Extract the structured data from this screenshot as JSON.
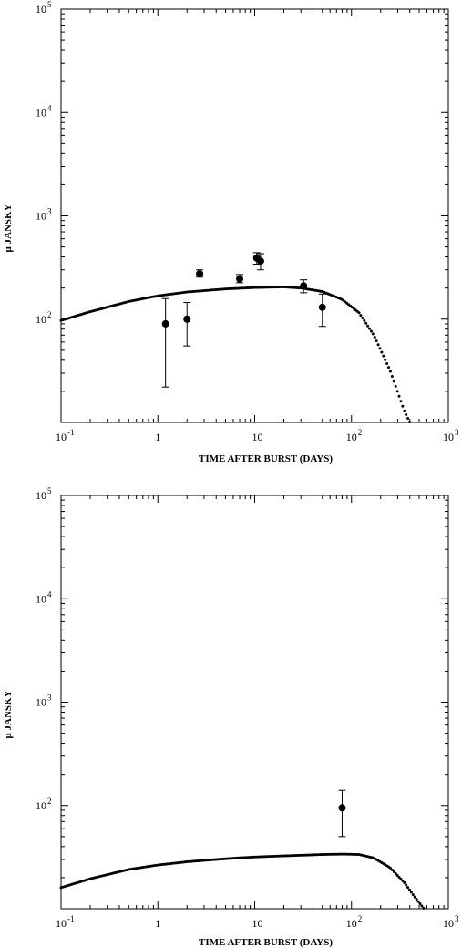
{
  "chart_data": [
    {
      "type": "scatter",
      "xlabel": "TIME AFTER BURST (DAYS)",
      "ylabel": "μ JANSKY",
      "xscale": "log",
      "yscale": "log",
      "xlim": [
        0.1,
        1000
      ],
      "ylim": [
        10,
        100000
      ],
      "x_ticks": [
        {
          "value": 0.1,
          "base": "10",
          "exp": "-1"
        },
        {
          "value": 1,
          "base": "1",
          "exp": ""
        },
        {
          "value": 10,
          "base": "10",
          "exp": ""
        },
        {
          "value": 100,
          "base": "10",
          "exp": "2"
        },
        {
          "value": 1000,
          "base": "10",
          "exp": "3"
        }
      ],
      "y_ticks": [
        {
          "value": 100,
          "base": "10",
          "exp": "2"
        },
        {
          "value": 1000,
          "base": "10",
          "exp": "3"
        },
        {
          "value": 10000,
          "base": "10",
          "exp": "4"
        },
        {
          "value": 100000,
          "base": "10",
          "exp": "5"
        }
      ],
      "series": [
        {
          "kind": "data-points-with-errorbars",
          "x": [
            1.2,
            2.0,
            2.7,
            7.0,
            10.5,
            11.5,
            32.0,
            50.0
          ],
          "y": [
            90,
            100,
            275,
            245,
            390,
            365,
            210,
            130
          ],
          "yerr_low": [
            22,
            55,
            255,
            225,
            340,
            300,
            180,
            85
          ],
          "yerr_high": [
            158,
            145,
            300,
            270,
            440,
            430,
            240,
            175
          ]
        },
        {
          "kind": "model-curve-dotted",
          "x": [
            0.1,
            0.2,
            0.5,
            1,
            2,
            5,
            10,
            20,
            30,
            50,
            80,
            120,
            170,
            250,
            350,
            400
          ],
          "y": [
            97,
            118,
            148,
            168,
            183,
            196,
            202,
            205,
            200,
            185,
            155,
            115,
            70,
            32,
            13,
            10
          ]
        }
      ]
    },
    {
      "type": "scatter",
      "xlabel": "TIME AFTER BURST (DAYS)",
      "ylabel": "μ JANSKY",
      "xscale": "log",
      "yscale": "log",
      "xlim": [
        0.1,
        1000
      ],
      "ylim": [
        10,
        100000
      ],
      "x_ticks": [
        {
          "value": 0.1,
          "base": "10",
          "exp": "-1"
        },
        {
          "value": 1,
          "base": "1",
          "exp": ""
        },
        {
          "value": 10,
          "base": "10",
          "exp": ""
        },
        {
          "value": 100,
          "base": "10",
          "exp": "2"
        },
        {
          "value": 1000,
          "base": "10",
          "exp": "3"
        }
      ],
      "y_ticks": [
        {
          "value": 100,
          "base": "10",
          "exp": "2"
        },
        {
          "value": 1000,
          "base": "10",
          "exp": "3"
        },
        {
          "value": 10000,
          "base": "10",
          "exp": "4"
        },
        {
          "value": 100000,
          "base": "10",
          "exp": "5"
        }
      ],
      "series": [
        {
          "kind": "data-points-with-errorbars",
          "x": [
            80
          ],
          "y": [
            95
          ],
          "yerr_low": [
            50
          ],
          "yerr_high": [
            140
          ]
        },
        {
          "kind": "model-curve-dotted",
          "x": [
            0.1,
            0.2,
            0.5,
            1,
            2,
            5,
            10,
            20,
            50,
            80,
            120,
            170,
            250,
            350,
            450,
            560
          ],
          "y": [
            16,
            19.5,
            24,
            26.5,
            28.5,
            30.5,
            31.7,
            32.5,
            33.5,
            33.8,
            33.5,
            31,
            25,
            18,
            13,
            10
          ]
        }
      ]
    }
  ]
}
